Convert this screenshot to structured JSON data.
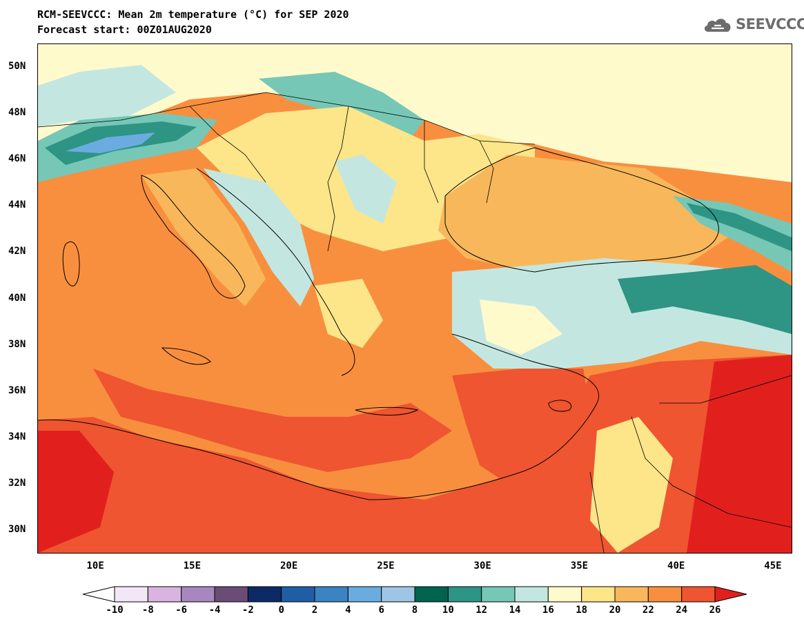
{
  "title_line1": "RCM-SEEVCCC: Mean 2m temperature (°C) for SEP 2020",
  "title_line2": "Forecast start: 00Z01AUG2020",
  "logo": {
    "icon": "cloud-icon",
    "text": "SEEVCCC"
  },
  "map": {
    "lat_ticks": [
      "50N",
      "48N",
      "46N",
      "44N",
      "42N",
      "40N",
      "38N",
      "36N",
      "34N",
      "32N",
      "30N"
    ],
    "lon_ticks": [
      "10E",
      "15E",
      "20E",
      "25E",
      "30E",
      "35E",
      "40E",
      "45E"
    ],
    "lat_values": [
      50,
      48,
      46,
      44,
      42,
      40,
      38,
      36,
      34,
      32,
      30
    ],
    "lon_values": [
      10,
      15,
      20,
      25,
      30,
      35,
      40,
      45
    ],
    "lon_range": [
      7,
      46
    ],
    "lat_range": [
      29,
      51
    ]
  },
  "colorbar": {
    "labels": [
      "-10",
      "-8",
      "-6",
      "-4",
      "-2",
      "0",
      "2",
      "4",
      "6",
      "8",
      "10",
      "12",
      "14",
      "16",
      "18",
      "20",
      "22",
      "24",
      "26"
    ],
    "colors": [
      "#f3e6f6",
      "#d9b4e0",
      "#a887bf",
      "#6b4c77",
      "#0c2b66",
      "#1f5ea4",
      "#3a84c1",
      "#6bace0",
      "#9ec6e4",
      "#00634d",
      "#2e9484",
      "#76c7b6",
      "#c3e7e0",
      "#fffacc",
      "#fde58a",
      "#f8b75a",
      "#f88f3f",
      "#ee5530"
    ],
    "under_color": "#ffffff",
    "over_color": "#e1201e"
  }
}
